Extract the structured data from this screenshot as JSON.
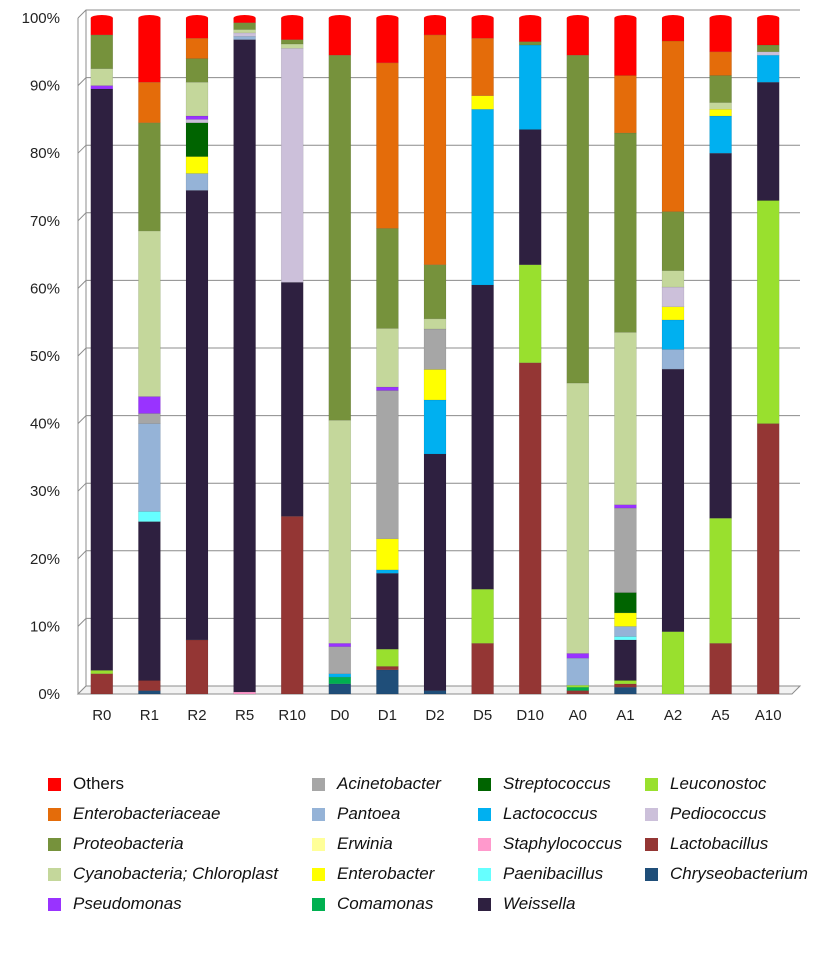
{
  "chart_data": {
    "type": "stacked-bar-100",
    "title": "",
    "xlabel": "",
    "ylabel": "",
    "ylim": [
      0,
      100
    ],
    "yticks": [
      "0%",
      "10%",
      "20%",
      "30%",
      "40%",
      "50%",
      "60%",
      "70%",
      "80%",
      "90%",
      "100%"
    ],
    "categories": [
      "R0",
      "R1",
      "R2",
      "R5",
      "R10",
      "D0",
      "D1",
      "D2",
      "D5",
      "D10",
      "A0",
      "A1",
      "A2",
      "A5",
      "A10"
    ],
    "series": [
      {
        "name": "Chryseobacterium",
        "italic": true,
        "color": "#1f4e79",
        "values": [
          0,
          0.5,
          0,
          0,
          0,
          1.5,
          3.5,
          0.5,
          0,
          0,
          0,
          1,
          0,
          0,
          0
        ]
      },
      {
        "name": "Lactobacillus",
        "italic": true,
        "color": "#943634",
        "values": [
          3,
          1.5,
          8,
          0,
          20.5,
          0,
          0.5,
          0,
          7.5,
          49,
          0.5,
          0.5,
          0,
          7.5,
          40
        ]
      },
      {
        "name": "Staphylococcus",
        "italic": true,
        "color": "#ff99cc",
        "values": [
          0,
          0,
          0,
          0.3,
          0,
          0,
          0,
          0,
          0,
          0,
          0,
          0,
          0,
          0,
          0
        ]
      },
      {
        "name": "Comamonas",
        "italic": true,
        "color": "#00b050",
        "values": [
          0,
          0,
          0,
          0,
          0,
          1,
          0,
          0,
          0,
          0,
          0.5,
          0,
          0,
          0,
          0
        ]
      },
      {
        "name": "Leuconostoc",
        "italic": true,
        "color": "#99e02e",
        "values": [
          0.5,
          0,
          0,
          0,
          0,
          0,
          2.5,
          0,
          8,
          14.5,
          0.3,
          0.5,
          9.5,
          18.5,
          33
        ]
      },
      {
        "name": "Weissella",
        "italic": true,
        "color": "#2e2040",
        "values": [
          86,
          23.5,
          66.5,
          96.5,
          27,
          0,
          11,
          35,
          45,
          20,
          0,
          6,
          40,
          54,
          17.5
        ]
      },
      {
        "name": "Paenibacillus",
        "italic": true,
        "color": "#66ffff",
        "values": [
          0,
          1.5,
          0,
          0,
          0,
          0,
          0,
          0,
          0,
          0,
          0,
          0.5,
          0,
          0,
          0
        ]
      },
      {
        "name": "Pantoea",
        "italic": true,
        "color": "#95b3d7",
        "values": [
          0,
          13,
          2.5,
          0.5,
          0,
          0,
          0,
          0,
          0,
          0,
          4,
          1.5,
          3,
          0,
          0
        ]
      },
      {
        "name": "Lactococcus",
        "italic": true,
        "color": "#00b0f0",
        "values": [
          0,
          0,
          0,
          0,
          0,
          0.5,
          0.5,
          8,
          26,
          12.5,
          0,
          0,
          4.5,
          5.5,
          4
        ]
      },
      {
        "name": "Enterobacter",
        "italic": true,
        "color": "#ffff00",
        "values": [
          0,
          0,
          2.5,
          0,
          0,
          0,
          4.5,
          4.5,
          2,
          0,
          0,
          2,
          2,
          1,
          0
        ]
      },
      {
        "name": "Erwinia",
        "italic": true,
        "color": "#ffff99",
        "values": [
          0,
          0,
          0,
          0,
          0,
          0,
          0,
          0,
          0,
          0,
          0,
          0,
          0,
          0,
          0
        ]
      },
      {
        "name": "Streptococcus",
        "italic": true,
        "color": "#006400",
        "values": [
          0,
          0,
          5,
          0,
          0,
          0,
          0,
          0,
          0,
          0,
          0,
          3,
          0,
          0,
          0
        ]
      },
      {
        "name": "Acinetobacter",
        "italic": true,
        "color": "#a6a6a6",
        "values": [
          0,
          1.5,
          0,
          0,
          0,
          4,
          21.5,
          6,
          0,
          0,
          0,
          12.5,
          0,
          0,
          0
        ]
      },
      {
        "name": "Pediococcus",
        "italic": true,
        "color": "#ccc0da",
        "values": [
          0,
          0,
          0.5,
          0.5,
          27,
          0,
          0,
          0,
          0,
          0,
          0,
          0,
          3,
          0,
          0.5
        ]
      },
      {
        "name": "Pseudomonas",
        "italic": true,
        "color": "#9933ff",
        "values": [
          0.5,
          2.5,
          0.5,
          0,
          0,
          0.5,
          0.5,
          0,
          0,
          0,
          0.7,
          0.5,
          0,
          0,
          0
        ]
      },
      {
        "name": "Cyanobacteria; Chloroplast",
        "italic": true,
        "color": "#c4d79b",
        "values": [
          2.5,
          24.5,
          5,
          0.5,
          0.5,
          33,
          8.5,
          1.5,
          0,
          0,
          40,
          25.5,
          2.5,
          1,
          0
        ]
      },
      {
        "name": "Proteobacteria",
        "italic": true,
        "color": "#76923c",
        "values": [
          5,
          16,
          3.5,
          1,
          0.5,
          54,
          14.5,
          8,
          0,
          0.5,
          48.5,
          29.5,
          9,
          4,
          1
        ]
      },
      {
        "name": "Enterobacteriaceae",
        "italic": true,
        "color": "#e46c0a",
        "values": [
          0,
          6,
          3,
          0,
          0,
          0,
          24,
          34,
          8.5,
          0,
          0,
          8.5,
          26,
          3.5,
          0
        ]
      },
      {
        "name": "Others",
        "italic": false,
        "color": "#ff0000",
        "values": [
          2.5,
          9.5,
          3,
          0.7,
          2.5,
          5.5,
          6.5,
          2.5,
          3,
          3.5,
          5.5,
          8.5,
          3.5,
          5,
          4
        ]
      }
    ],
    "legend_order": [
      "Others",
      "Acinetobacter",
      "Streptococcus",
      "Leuconostoc",
      "Enterobacteriaceae",
      "Pantoea",
      "Lactococcus",
      "Pediococcus",
      "Proteobacteria",
      "Erwinia",
      "Staphylococcus",
      "Lactobacillus",
      "Cyanobacteria; Chloroplast",
      "Enterobacter",
      "Paenibacillus",
      "Chryseobacterium",
      "Pseudomonas",
      "Comamonas",
      "Weissella"
    ],
    "legend_placement": "bottom"
  }
}
